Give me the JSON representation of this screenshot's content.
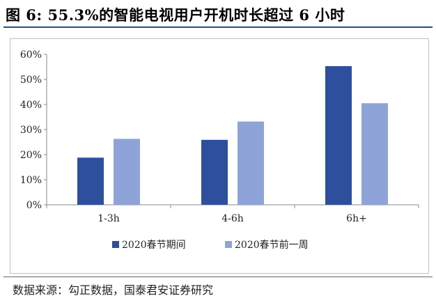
{
  "figure": {
    "title": "图 6:   55.3%的智能电视用户开机时长超过 6 小时",
    "source": "数据来源：勾正数据，国泰君安证券研究"
  },
  "colors": {
    "series1": "#2e4f9e",
    "series2": "#8ea4d8",
    "rule": "#1f4e8c"
  },
  "chart_data": {
    "type": "bar",
    "title": "",
    "xlabel": "",
    "ylabel": "",
    "categories": [
      "1-3h",
      "4-6h",
      "6h+"
    ],
    "series": [
      {
        "name": "2020春节期间",
        "values": [
          18.8,
          25.9,
          55.3
        ]
      },
      {
        "name": "2020春节前一周",
        "values": [
          26.3,
          33.2,
          40.5
        ]
      }
    ],
    "ylim": [
      0,
      60
    ],
    "yticks": [
      "0%",
      "10%",
      "20%",
      "30%",
      "40%",
      "50%",
      "60%"
    ],
    "grid": false,
    "legend": "bottom"
  }
}
